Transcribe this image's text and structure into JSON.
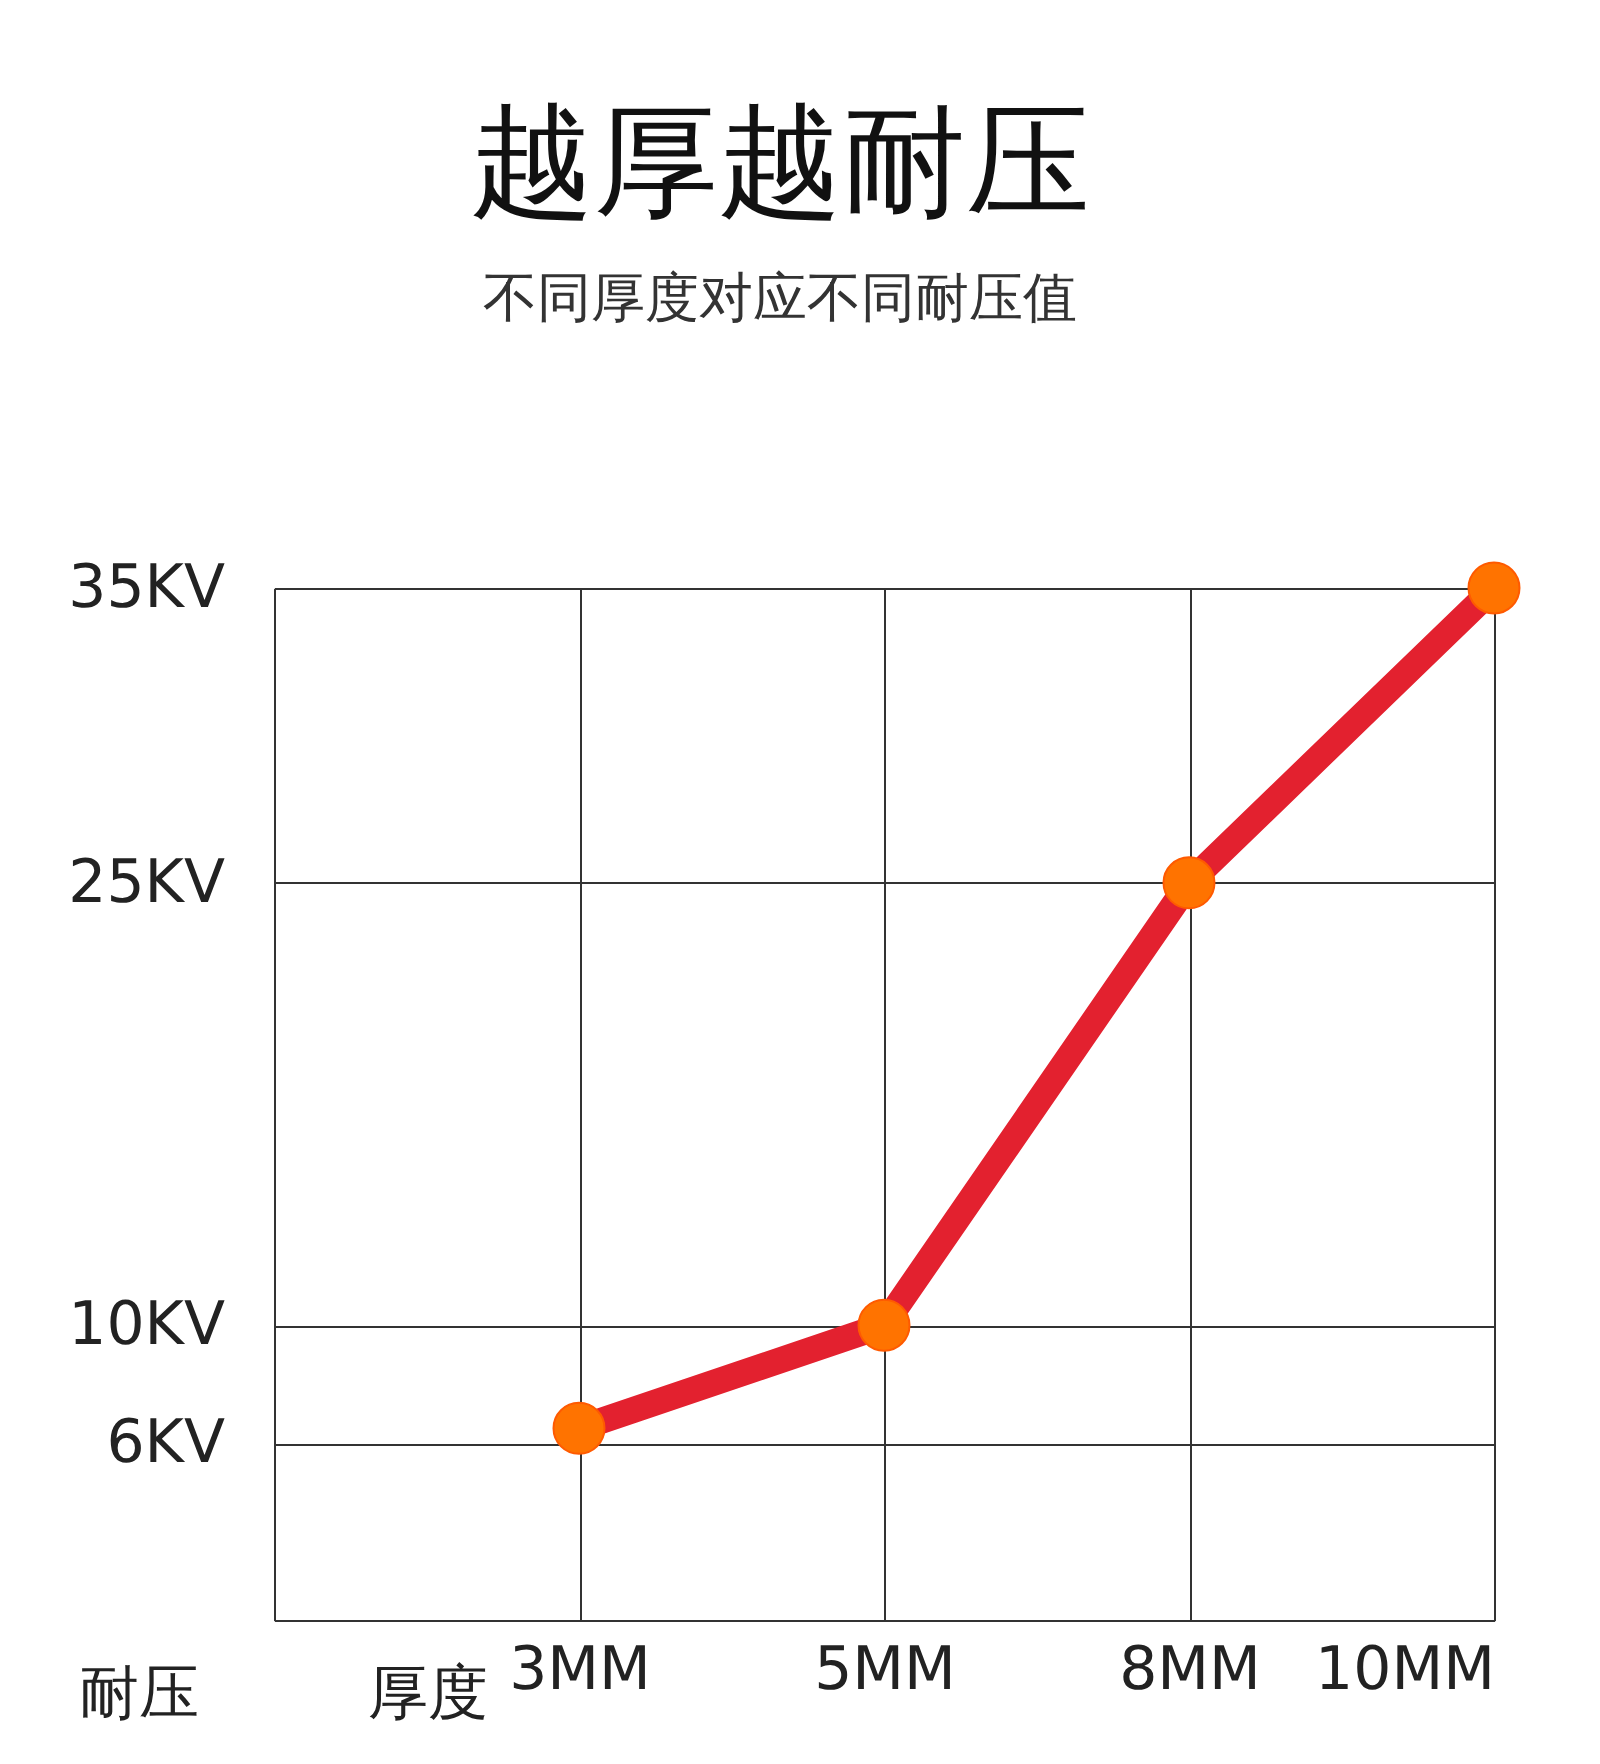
{
  "chart_data": {
    "type": "line",
    "title": "越厚越耐压",
    "subtitle": "不同厚度对应不同耐压值",
    "xlabel": "厚度",
    "ylabel": "耐压",
    "categories": [
      "3MM",
      "5MM",
      "8MM",
      "10MM"
    ],
    "series": [
      {
        "color": "#e3212f",
        "values": [
          6.5,
          10,
          25,
          35
        ]
      }
    ],
    "colors": [
      "#ff7300",
      "#ff7300",
      "#ff7300",
      "#ff7300"
    ],
    "ylim": [
      0,
      35
    ],
    "yticks": [
      {
        "value": 6,
        "label": "6KV"
      },
      {
        "value": 10,
        "label": "10KV"
      },
      {
        "value": 25,
        "label": "25KV"
      },
      {
        "value": 35,
        "label": "35KV"
      }
    ],
    "grid": true,
    "marker": "circle",
    "line_style": "solid"
  }
}
